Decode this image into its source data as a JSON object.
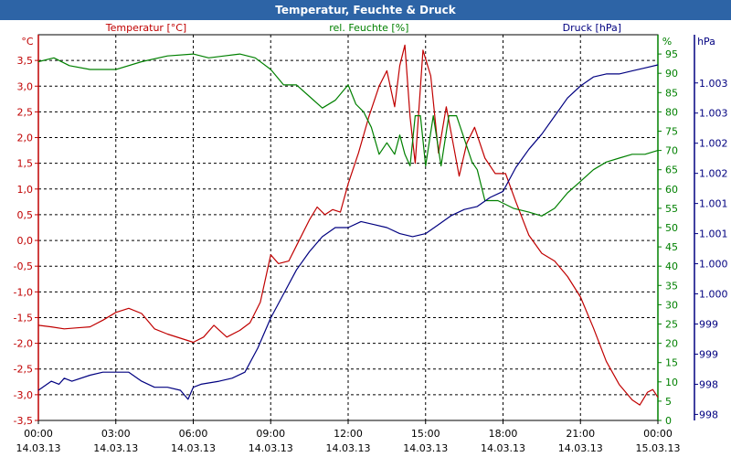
{
  "window": {
    "title": "Temperatur, Feuchte & Druck"
  },
  "chart_data": {
    "type": "line",
    "grid": true,
    "x": {
      "labels": [
        [
          "00:00",
          "14.03.13"
        ],
        [
          "03:00",
          "14.03.13"
        ],
        [
          "06:00",
          "14.03.13"
        ],
        [
          "09:00",
          "14.03.13"
        ],
        [
          "12:00",
          "14.03.13"
        ],
        [
          "15:00",
          "14.03.13"
        ],
        [
          "18:00",
          "14.03.13"
        ],
        [
          "21:00",
          "14.03.13"
        ],
        [
          "00:00",
          "15.03.13"
        ]
      ],
      "range_hours": [
        0,
        24
      ]
    },
    "axes": {
      "temperature": {
        "label": "Temperatur [°C]",
        "unit": "°C",
        "color": "#c00000",
        "side": "left",
        "range": [
          -3.5,
          4.0
        ],
        "ticks": [
          "3,5",
          "3,0",
          "2,5",
          "2,0",
          "1,5",
          "1,0",
          "0,5",
          "0,0",
          "-0,5",
          "-1,0",
          "-1,5",
          "-2,0",
          "-2,5",
          "-3,0",
          "-3,5"
        ],
        "tick_values": [
          3.5,
          3.0,
          2.5,
          2.0,
          1.5,
          1.0,
          0.5,
          0.0,
          -0.5,
          -1.0,
          -1.5,
          -2.0,
          -2.5,
          -3.0,
          -3.5
        ]
      },
      "humidity": {
        "label": "rel. Feuchte [%]",
        "unit": "%",
        "color": "#008000",
        "side": "right",
        "range": [
          0,
          100
        ],
        "ticks": [
          "95",
          "90",
          "85",
          "80",
          "75",
          "70",
          "65",
          "60",
          "55",
          "50",
          "45",
          "40",
          "35",
          "30",
          "25",
          "20",
          "15",
          "10",
          "5",
          "0"
        ],
        "tick_values": [
          95,
          90,
          85,
          80,
          75,
          70,
          65,
          60,
          55,
          50,
          45,
          40,
          35,
          30,
          25,
          20,
          15,
          10,
          5,
          0
        ]
      },
      "pressure": {
        "label": "Druck [hPa]",
        "unit": "hPa",
        "color": "#000080",
        "side": "right-outer",
        "range": [
          997.4,
          1003.8
        ],
        "ticks": [
          "1.003",
          "1.003",
          "1.002",
          "1.002",
          "1.001",
          "1.001",
          "1.000",
          "1.000",
          "999",
          "999",
          "998",
          "998"
        ],
        "tick_values": [
          1003.0,
          1002.5,
          1002.0,
          1001.5,
          1001.0,
          1000.5,
          1000.0,
          999.5,
          999.0,
          998.5,
          998.0,
          997.5
        ]
      }
    },
    "series": [
      {
        "name": "Temperatur [°C]",
        "axis": "temperature",
        "color": "#c00000",
        "points": [
          [
            0,
            -1.65
          ],
          [
            0.5,
            -1.68
          ],
          [
            1,
            -1.72
          ],
          [
            1.5,
            -1.7
          ],
          [
            2,
            -1.68
          ],
          [
            2.5,
            -1.55
          ],
          [
            3,
            -1.4
          ],
          [
            3.5,
            -1.32
          ],
          [
            4,
            -1.42
          ],
          [
            4.5,
            -1.72
          ],
          [
            5,
            -1.82
          ],
          [
            5.5,
            -1.9
          ],
          [
            6,
            -1.98
          ],
          [
            6.4,
            -1.88
          ],
          [
            6.8,
            -1.65
          ],
          [
            7.3,
            -1.88
          ],
          [
            7.8,
            -1.75
          ],
          [
            8.2,
            -1.6
          ],
          [
            8.6,
            -1.2
          ],
          [
            9,
            -0.28
          ],
          [
            9.3,
            -0.45
          ],
          [
            9.7,
            -0.4
          ],
          [
            10,
            -0.1
          ],
          [
            10.5,
            0.4
          ],
          [
            10.8,
            0.65
          ],
          [
            11.1,
            0.5
          ],
          [
            11.4,
            0.6
          ],
          [
            11.7,
            0.55
          ],
          [
            12,
            1.1
          ],
          [
            12.4,
            1.7
          ],
          [
            12.8,
            2.4
          ],
          [
            13.2,
            3.0
          ],
          [
            13.5,
            3.3
          ],
          [
            13.8,
            2.6
          ],
          [
            14.0,
            3.4
          ],
          [
            14.2,
            3.8
          ],
          [
            14.4,
            2.4
          ],
          [
            14.6,
            1.5
          ],
          [
            14.9,
            3.7
          ],
          [
            15.2,
            3.2
          ],
          [
            15.5,
            1.7
          ],
          [
            15.8,
            2.6
          ],
          [
            16.1,
            1.8
          ],
          [
            16.3,
            1.25
          ],
          [
            16.6,
            1.9
          ],
          [
            16.9,
            2.2
          ],
          [
            17.3,
            1.6
          ],
          [
            17.7,
            1.3
          ],
          [
            18.1,
            1.3
          ],
          [
            18.5,
            0.75
          ],
          [
            19,
            0.1
          ],
          [
            19.5,
            -0.25
          ],
          [
            20,
            -0.4
          ],
          [
            20.5,
            -0.7
          ],
          [
            21,
            -1.1
          ],
          [
            21.5,
            -1.7
          ],
          [
            22,
            -2.35
          ],
          [
            22.5,
            -2.8
          ],
          [
            23,
            -3.1
          ],
          [
            23.3,
            -3.2
          ],
          [
            23.6,
            -2.95
          ],
          [
            23.8,
            -2.9
          ],
          [
            24,
            -3.05
          ]
        ]
      },
      {
        "name": "rel. Feuchte [%]",
        "axis": "humidity",
        "color": "#008000",
        "points": [
          [
            0,
            93
          ],
          [
            0.6,
            94
          ],
          [
            1.2,
            92
          ],
          [
            2,
            91
          ],
          [
            3,
            91
          ],
          [
            4,
            93
          ],
          [
            5,
            94.5
          ],
          [
            6,
            95
          ],
          [
            6.6,
            94
          ],
          [
            7.2,
            94.5
          ],
          [
            7.8,
            95
          ],
          [
            8.4,
            94
          ],
          [
            9,
            91
          ],
          [
            9.5,
            87
          ],
          [
            10,
            87
          ],
          [
            10.5,
            84
          ],
          [
            11,
            81
          ],
          [
            11.5,
            83
          ],
          [
            12,
            87
          ],
          [
            12.3,
            82
          ],
          [
            12.6,
            80
          ],
          [
            12.9,
            76
          ],
          [
            13.2,
            69
          ],
          [
            13.5,
            72
          ],
          [
            13.8,
            69
          ],
          [
            14.0,
            74
          ],
          [
            14.2,
            69
          ],
          [
            14.4,
            66
          ],
          [
            14.6,
            79
          ],
          [
            14.8,
            79
          ],
          [
            15.0,
            66
          ],
          [
            15.3,
            79
          ],
          [
            15.6,
            66
          ],
          [
            15.9,
            79
          ],
          [
            16.2,
            79
          ],
          [
            16.5,
            73
          ],
          [
            16.8,
            67
          ],
          [
            17.0,
            65
          ],
          [
            17.3,
            57
          ],
          [
            17.8,
            57
          ],
          [
            18.4,
            55
          ],
          [
            19,
            54
          ],
          [
            19.5,
            53
          ],
          [
            20,
            55
          ],
          [
            20.5,
            59
          ],
          [
            21,
            62
          ],
          [
            21.5,
            65
          ],
          [
            22,
            67
          ],
          [
            22.5,
            68
          ],
          [
            23,
            69
          ],
          [
            23.5,
            69
          ],
          [
            24,
            70
          ]
        ]
      },
      {
        "name": "Druck [hPa]",
        "axis": "pressure",
        "color": "#000080",
        "points": [
          [
            0,
            997.9
          ],
          [
            0.5,
            998.05
          ],
          [
            0.8,
            998.0
          ],
          [
            1,
            998.1
          ],
          [
            1.3,
            998.05
          ],
          [
            2,
            998.15
          ],
          [
            2.5,
            998.2
          ],
          [
            3,
            998.2
          ],
          [
            3.5,
            998.2
          ],
          [
            4,
            998.05
          ],
          [
            4.5,
            997.95
          ],
          [
            5,
            997.95
          ],
          [
            5.5,
            997.9
          ],
          [
            5.8,
            997.75
          ],
          [
            6,
            997.95
          ],
          [
            6.3,
            998.0
          ],
          [
            7,
            998.05
          ],
          [
            7.5,
            998.1
          ],
          [
            8,
            998.2
          ],
          [
            8.5,
            998.6
          ],
          [
            9,
            999.1
          ],
          [
            9.5,
            999.5
          ],
          [
            10,
            999.9
          ],
          [
            10.5,
            1000.2
          ],
          [
            11,
            1000.45
          ],
          [
            11.5,
            1000.6
          ],
          [
            12,
            1000.6
          ],
          [
            12.5,
            1000.7
          ],
          [
            13,
            1000.65
          ],
          [
            13.5,
            1000.6
          ],
          [
            14,
            1000.5
          ],
          [
            14.5,
            1000.45
          ],
          [
            15,
            1000.5
          ],
          [
            15.5,
            1000.65
          ],
          [
            16,
            1000.8
          ],
          [
            16.5,
            1000.9
          ],
          [
            17,
            1000.95
          ],
          [
            17.5,
            1001.1
          ],
          [
            18,
            1001.2
          ],
          [
            18.5,
            1001.6
          ],
          [
            19,
            1001.9
          ],
          [
            19.5,
            1002.15
          ],
          [
            20,
            1002.45
          ],
          [
            20.5,
            1002.75
          ],
          [
            21,
            1002.95
          ],
          [
            21.5,
            1003.1
          ],
          [
            22,
            1003.15
          ],
          [
            22.5,
            1003.15
          ],
          [
            23,
            1003.2
          ],
          [
            23.5,
            1003.25
          ],
          [
            24,
            1003.3
          ]
        ]
      }
    ]
  }
}
